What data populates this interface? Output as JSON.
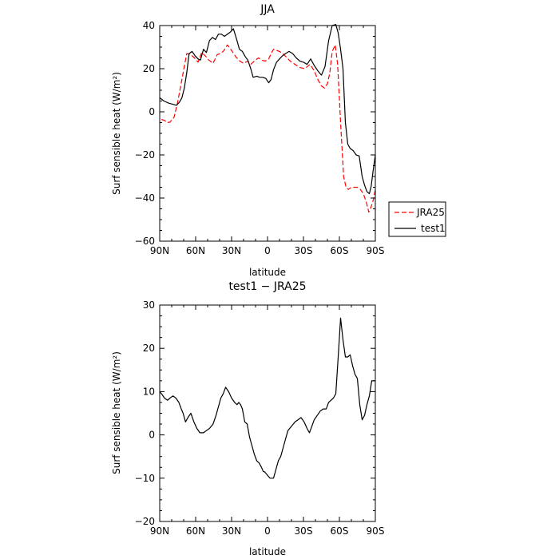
{
  "chart_data": [
    {
      "type": "line",
      "title": "JJA",
      "xlabel": "latitude",
      "ylabel": "Surf sensible heat (W/m²)",
      "xlim": [
        -90,
        90
      ],
      "ylim": [
        -60,
        40
      ],
      "x_ticks": [
        -90,
        -60,
        -30,
        0,
        30,
        60,
        90
      ],
      "x_tick_labels": [
        "90N",
        "60N",
        "30N",
        "0",
        "30S",
        "60S",
        "90S"
      ],
      "y_ticks": [
        -60,
        -40,
        -20,
        0,
        20,
        40
      ],
      "y_tick_labels": [
        "−60",
        "−40",
        "−20",
        "0",
        "20",
        "40"
      ],
      "legend_position": "right",
      "series": [
        {
          "name": "JRA25",
          "color": "#ff0000",
          "dash": "dashed",
          "x": [
            -88.5,
            -86,
            -84,
            -81.5,
            -78,
            -75,
            -71.5,
            -67.5,
            -64,
            -61,
            -58,
            -55,
            -52,
            -49,
            -45.5,
            -42,
            -39.5,
            -37,
            -33.5,
            -30,
            -26.5,
            -23,
            -20,
            -16.5,
            -14,
            -12,
            -10,
            -7.5,
            -5,
            -2,
            1,
            3,
            5,
            7.5,
            10,
            12.5,
            15.5,
            19,
            23,
            27,
            31,
            35.5,
            39,
            42,
            45,
            47.5,
            50,
            52,
            54,
            56.5,
            58.5,
            61,
            63.5,
            65.5,
            67.5,
            70,
            72.5,
            75,
            77.5,
            80,
            82.5,
            84.5,
            86.5,
            88.5,
            90
          ],
          "y": [
            -3.5,
            -4,
            -5,
            -4.8,
            -2.5,
            4.5,
            15,
            27,
            26.5,
            25,
            23,
            27.5,
            26,
            24,
            22.5,
            26.5,
            27,
            28,
            31,
            28.5,
            25.5,
            23.5,
            22.5,
            23.5,
            22,
            23,
            24,
            25,
            24,
            23.5,
            24.5,
            27,
            29,
            28.5,
            28,
            27,
            25.5,
            23.5,
            22,
            20.5,
            20,
            22,
            19,
            15,
            12,
            11,
            13,
            18,
            28,
            31,
            22,
            -5,
            -30,
            -35,
            -36,
            -35,
            -35,
            -35,
            -36,
            -38,
            -42,
            -46.5,
            -44,
            -40.5,
            -36
          ]
        },
        {
          "name": "test1",
          "color": "#000000",
          "dash": "solid",
          "x": [
            -90,
            -86.5,
            -82.5,
            -79,
            -76,
            -73.5,
            -71.5,
            -69.5,
            -67.5,
            -65.5,
            -63,
            -60.5,
            -58,
            -56,
            -53.5,
            -51,
            -48.5,
            -46,
            -43.5,
            -41,
            -38.5,
            -36,
            -33.5,
            -31,
            -28.5,
            -26,
            -23.5,
            -21,
            -18.5,
            -16.5,
            -14,
            -12,
            -9,
            -6.5,
            -4,
            -1.5,
            1,
            3,
            5,
            7.5,
            10,
            12.5,
            15,
            18,
            21,
            24,
            27,
            30,
            33,
            36,
            39,
            42,
            45,
            48,
            51,
            54,
            57,
            59,
            61,
            63,
            65,
            67,
            69,
            71.5,
            74,
            76.5,
            79,
            81,
            83,
            85,
            86.5,
            88,
            90
          ],
          "y": [
            6.5,
            5,
            4,
            3.5,
            3,
            4.5,
            6.5,
            11,
            18,
            27,
            28,
            26,
            24.5,
            24,
            29,
            27.5,
            33,
            34.5,
            33.5,
            36,
            36,
            35,
            36,
            37,
            38.5,
            34,
            29,
            28,
            25.5,
            24,
            20,
            16,
            16.5,
            16,
            16,
            15.5,
            13.5,
            15,
            19.5,
            23,
            24.5,
            26,
            27,
            28,
            27,
            25,
            23.5,
            23,
            22,
            24.5,
            21.5,
            19,
            17,
            21,
            33,
            40,
            40.5,
            36.5,
            29,
            20,
            -5,
            -15,
            -17,
            -18,
            -20,
            -20.5,
            -30,
            -34,
            -37,
            -38,
            -34.5,
            -28,
            -20
          ]
        }
      ]
    },
    {
      "type": "line",
      "title": "test1 − JRA25",
      "xlabel": "latitude",
      "ylabel": "Surf sensible heat (W/m²)",
      "xlim": [
        -90,
        90
      ],
      "ylim": [
        -20,
        30
      ],
      "x_ticks": [
        -90,
        -60,
        -30,
        0,
        30,
        60,
        90
      ],
      "x_tick_labels": [
        "90N",
        "60N",
        "30N",
        "0",
        "30S",
        "60S",
        "90S"
      ],
      "y_ticks": [
        -20,
        -10,
        0,
        10,
        20,
        30
      ],
      "y_tick_labels": [
        "−20",
        "−10",
        "0",
        "10",
        "20",
        "30"
      ],
      "series": [
        {
          "color": "#000000",
          "dash": "solid",
          "x": [
            -90,
            -88.5,
            -86,
            -83.5,
            -81.5,
            -79,
            -76.5,
            -74,
            -72,
            -70.5,
            -68.5,
            -66.5,
            -64,
            -61.5,
            -59,
            -56.5,
            -53.5,
            -51,
            -48.5,
            -45.5,
            -43,
            -41,
            -39,
            -37,
            -35,
            -32.5,
            -30,
            -27.5,
            -25.5,
            -24,
            -22.5,
            -21,
            -19,
            -17,
            -15,
            -13,
            -11,
            -9,
            -7,
            -5,
            -3.5,
            -2.5,
            -1,
            0.5,
            2,
            3.5,
            5,
            7,
            9,
            11,
            13,
            15,
            17,
            20,
            23,
            25.5,
            28,
            30.5,
            33,
            35,
            37,
            39,
            41.5,
            44,
            46.5,
            49,
            51,
            53,
            55,
            57,
            59,
            61,
            63,
            65,
            67,
            69,
            71,
            73,
            75,
            77,
            79,
            81,
            83,
            85,
            87,
            88.5,
            90
          ],
          "y": [
            10,
            9.5,
            8.5,
            8,
            8.5,
            9,
            8.5,
            7.5,
            6,
            5,
            3,
            4,
            5,
            3,
            1.5,
            0.5,
            0.5,
            1,
            1.5,
            2.5,
            4.5,
            6.5,
            8.5,
            9.5,
            11,
            10,
            8.5,
            7.5,
            7,
            7.5,
            7,
            6,
            3,
            2.5,
            -0.5,
            -2.5,
            -4.5,
            -6,
            -6.5,
            -7.5,
            -8.5,
            -8.5,
            -9,
            -9.5,
            -10,
            -10,
            -10,
            -8,
            -6,
            -5,
            -3,
            -1,
            1,
            2,
            3,
            3.5,
            4,
            3,
            1.5,
            0.5,
            2,
            3.5,
            4.5,
            5.5,
            6,
            6,
            7.5,
            8,
            8.5,
            9.5,
            18,
            27,
            22,
            18,
            18,
            18.5,
            16,
            14,
            13,
            7,
            3.5,
            4.5,
            7,
            9,
            12.5,
            12.5,
            12.5
          ]
        }
      ]
    }
  ]
}
